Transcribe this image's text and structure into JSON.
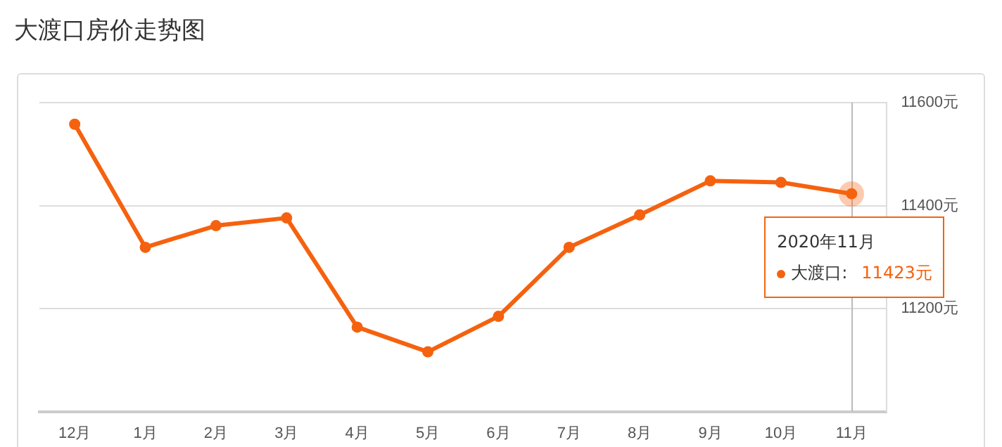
{
  "chart_data": {
    "type": "line",
    "title": "大渡口房价走势图",
    "categories": [
      "12月",
      "1月",
      "2月",
      "3月",
      "4月",
      "5月",
      "6月",
      "7月",
      "8月",
      "9月",
      "10月",
      "11月"
    ],
    "series": [
      {
        "name": "大渡口",
        "color": "#f5620f",
        "values": [
          11558,
          11319,
          11361,
          11376,
          11164,
          11116,
          11185,
          11319,
          11382,
          11448,
          11445,
          11423
        ]
      }
    ],
    "ylim": [
      11000,
      11600
    ],
    "yticks": [
      {
        "value": 11000,
        "label": null
      },
      {
        "value": 11200,
        "label": "11200元"
      },
      {
        "value": 11400,
        "label": "11400元"
      },
      {
        "value": 11600,
        "label": "11600元"
      }
    ],
    "ref_lines": [
      {
        "axis": "x",
        "value": "11月",
        "color": "#bbbbbb"
      }
    ],
    "grid": "y",
    "legend": "right",
    "marker": "circle",
    "line_style": "solid",
    "annotations": [
      {
        "text": "2020年11月",
        "x": "11月",
        "y": 11423
      },
      ":",
      "11423元"
    ]
  }
}
